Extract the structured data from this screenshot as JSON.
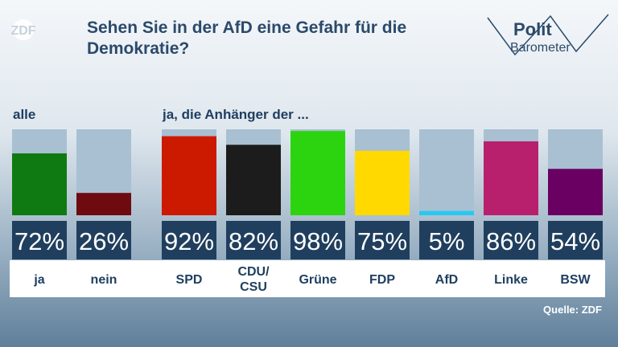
{
  "header": {
    "title": "Sehen Sie in der AfD eine Gefahr für die Demokratie?",
    "broadcaster_logo": "ZDF",
    "show_logo_line1": "Polit",
    "show_logo_line2": "Barometer"
  },
  "groups": {
    "all_label": "alle",
    "supporters_label": "ja, die Anhänger der ..."
  },
  "source": "Quelle: ZDF",
  "chart_data": {
    "type": "bar",
    "ylim": [
      0,
      100
    ],
    "categories": [
      "ja",
      "nein",
      "SPD",
      "CDU/\nCSU",
      "Grüne",
      "FDP",
      "AfD",
      "Linke",
      "BSW"
    ],
    "values": [
      72,
      26,
      92,
      82,
      98,
      75,
      5,
      86,
      54
    ],
    "value_labels": [
      "72%",
      "26%",
      "92%",
      "82%",
      "98%",
      "75%",
      "5%",
      "86%",
      "54%"
    ],
    "colors": [
      "#0f7a12",
      "#6e0b10",
      "#cc1a00",
      "#1c1c1c",
      "#2bd40f",
      "#ffd900",
      "#28c8f0",
      "#b8206e",
      "#6a0062"
    ],
    "track_color": "#a8c0d2",
    "label_box_color": "#203f5e"
  }
}
